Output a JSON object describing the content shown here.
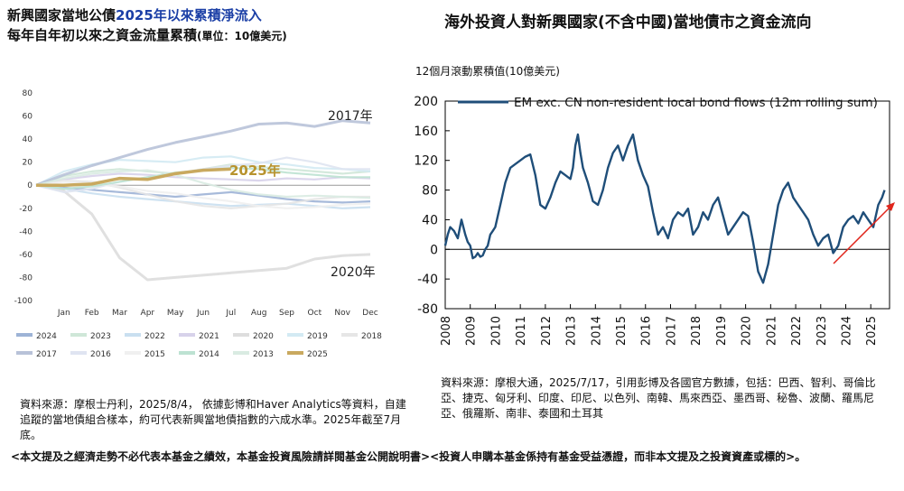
{
  "left_title": {
    "line1_prefix": "新興國家當地公債",
    "line1_highlight": "2025年以來累積淨流入",
    "line2": "每年自年初以來之資金流量累積",
    "line2_unit": "(單位：10億美元)"
  },
  "right_title": "海外投資人對新興國家(不含中國)當地債市之資金流向",
  "right_ylabel": "12個月滾動累積值(10億美元)",
  "left_source": "資料來源：摩根士丹利，2025/8/4， 依據彭博和Haver Analytics等資料，自建追蹤的當地債組合樣本，約可代表新興當地債指數的六成水準。2025年截至7月底。",
  "right_source": "資料來源：摩根大通，2025/7/17，引用彭博及各國官方數據，包括：巴西、智利、哥倫比亞、捷克、匈牙利、印度、印尼、以色列、南韓、馬來西亞、墨西哥、秘魯、波蘭、羅馬尼亞、俄羅斯、南非、泰國和土耳其",
  "disclaimer": "<本文提及之經濟走勢不必代表本基金之績效，本基金投資風險請詳閱基金公開說明書><投資人申購本基金係持有基金受益憑證，而非本文提及之投資資產或標的>。",
  "chart_data": [
    {
      "type": "line",
      "categories": [
        "",
        "Jan",
        "Feb",
        "Mar",
        "Apr",
        "May",
        "Jun",
        "Jul",
        "Aug",
        "Sep",
        "Oct",
        "Nov",
        "Dec"
      ],
      "ylim": [
        -100,
        80
      ],
      "yticks": [
        80,
        60,
        40,
        20,
        0,
        -20,
        -40,
        -60,
        -80,
        -100
      ],
      "annotations": [
        {
          "text": "2017年",
          "series": "2017"
        },
        {
          "text": "2025年",
          "series": "2025"
        },
        {
          "text": "2020年",
          "series": "2020"
        }
      ],
      "series": [
        {
          "name": "2024",
          "color": "#9db3d6",
          "values": [
            0,
            -2,
            -4,
            -6,
            -8,
            -10,
            -8,
            -6,
            -9,
            -12,
            -14,
            -15,
            -14
          ]
        },
        {
          "name": "2023",
          "color": "#cfe7d8",
          "values": [
            0,
            8,
            12,
            14,
            12,
            10,
            14,
            18,
            16,
            14,
            12,
            10,
            12
          ]
        },
        {
          "name": "2022",
          "color": "#c9dff0",
          "values": [
            0,
            -3,
            -7,
            -10,
            -12,
            -14,
            -16,
            -18,
            -17,
            -16,
            -18,
            -20,
            -19
          ]
        },
        {
          "name": "2021",
          "color": "#d7d2ea",
          "values": [
            0,
            5,
            8,
            10,
            9,
            7,
            6,
            5,
            4,
            6,
            5,
            7,
            6
          ]
        },
        {
          "name": "2020",
          "color": "#dddddd",
          "values": [
            0,
            -5,
            -25,
            -63,
            -82,
            -80,
            -78,
            -76,
            -74,
            -72,
            -64,
            -61,
            -60
          ]
        },
        {
          "name": "2019",
          "color": "#d3eaf3",
          "values": [
            0,
            12,
            18,
            22,
            21,
            20,
            24,
            25,
            20,
            18,
            15,
            14,
            12
          ]
        },
        {
          "name": "2018",
          "color": "#e6e6e6",
          "values": [
            0,
            4,
            3,
            -2,
            -8,
            -14,
            -18,
            -20,
            -18,
            -16,
            -12,
            -10,
            -10
          ]
        },
        {
          "name": "2017",
          "color": "#b8c2d8",
          "values": [
            0,
            9,
            17,
            24,
            31,
            37,
            42,
            47,
            53,
            54,
            51,
            56,
            54
          ]
        },
        {
          "name": "2016",
          "color": "#dfe4f1",
          "values": [
            0,
            -6,
            -3,
            3,
            7,
            10,
            14,
            17,
            19,
            24,
            20,
            14,
            14
          ]
        },
        {
          "name": "2015",
          "color": "#f0f0f0",
          "values": [
            0,
            3,
            1,
            -1,
            -5,
            -7,
            -11,
            -14,
            -18,
            -20,
            -19,
            -17,
            -16
          ]
        },
        {
          "name": "2014",
          "color": "#bde2d2",
          "values": [
            0,
            -3,
            -1,
            3,
            7,
            11,
            13,
            15,
            14,
            11,
            9,
            7,
            7
          ]
        },
        {
          "name": "2013",
          "color": "#d9ebe2",
          "values": [
            0,
            6,
            10,
            12,
            13,
            9,
            2,
            -4,
            -8,
            -10,
            -9,
            -10,
            -11
          ]
        },
        {
          "name": "2025",
          "color": "#c9a95f",
          "values": [
            0,
            0,
            1,
            6,
            5,
            10,
            13,
            14,
            null,
            null,
            null,
            null,
            null
          ]
        }
      ]
    },
    {
      "type": "line",
      "title": "",
      "legend": "EM exc. CN non-resident local bond flows (12m rolling sum)",
      "legend_position": "top",
      "ylim": [
        -80,
        200
      ],
      "yticks": [
        200,
        160,
        120,
        80,
        40,
        0,
        -40,
        -80
      ],
      "xlim": [
        2008,
        2025.75
      ],
      "xticks": [
        2008,
        2009,
        2010,
        2011,
        2012,
        2013,
        2014,
        2015,
        2016,
        2017,
        2018,
        2019,
        2020,
        2021,
        2022,
        2023,
        2024,
        2025
      ],
      "series": [
        {
          "name": "EM exc. CN non-resident local bond flows (12m rolling sum)",
          "color": "#1f4e79",
          "x": [
            2008.0,
            2008.1,
            2008.2,
            2008.35,
            2008.5,
            2008.65,
            2008.8,
            2008.9,
            2009.0,
            2009.1,
            2009.2,
            2009.3,
            2009.4,
            2009.5,
            2009.6,
            2009.7,
            2009.8,
            2009.9,
            2010.0,
            2010.2,
            2010.4,
            2010.6,
            2010.8,
            2011.0,
            2011.2,
            2011.4,
            2011.6,
            2011.8,
            2012.0,
            2012.2,
            2012.4,
            2012.6,
            2012.8,
            2013.0,
            2013.1,
            2013.2,
            2013.3,
            2013.4,
            2013.5,
            2013.7,
            2013.9,
            2014.1,
            2014.3,
            2014.5,
            2014.7,
            2014.9,
            2015.1,
            2015.3,
            2015.5,
            2015.7,
            2015.9,
            2016.1,
            2016.3,
            2016.5,
            2016.7,
            2016.9,
            2017.1,
            2017.3,
            2017.5,
            2017.7,
            2017.9,
            2018.1,
            2018.3,
            2018.5,
            2018.7,
            2018.9,
            2019.1,
            2019.3,
            2019.5,
            2019.7,
            2019.9,
            2020.1,
            2020.3,
            2020.5,
            2020.7,
            2020.9,
            2021.1,
            2021.3,
            2021.5,
            2021.7,
            2021.9,
            2022.1,
            2022.3,
            2022.5,
            2022.7,
            2022.9,
            2023.1,
            2023.3,
            2023.5,
            2023.7,
            2023.9,
            2024.1,
            2024.3,
            2024.5,
            2024.7,
            2024.9,
            2025.1,
            2025.3,
            2025.45,
            2025.55
          ],
          "values": [
            5,
            20,
            30,
            25,
            15,
            40,
            20,
            10,
            5,
            -12,
            -10,
            -5,
            -10,
            -8,
            0,
            5,
            20,
            25,
            30,
            60,
            90,
            110,
            115,
            120,
            125,
            128,
            100,
            60,
            55,
            70,
            90,
            105,
            100,
            95,
            110,
            140,
            155,
            130,
            110,
            90,
            65,
            60,
            80,
            110,
            130,
            140,
            120,
            140,
            155,
            120,
            100,
            85,
            50,
            20,
            30,
            15,
            40,
            50,
            45,
            55,
            20,
            30,
            50,
            40,
            60,
            70,
            45,
            20,
            30,
            40,
            50,
            45,
            10,
            -30,
            -45,
            -20,
            20,
            60,
            80,
            90,
            70,
            60,
            50,
            40,
            20,
            5,
            15,
            20,
            -5,
            5,
            30,
            40,
            45,
            35,
            50,
            40,
            30,
            60,
            70,
            80
          ]
        }
      ]
    }
  ]
}
